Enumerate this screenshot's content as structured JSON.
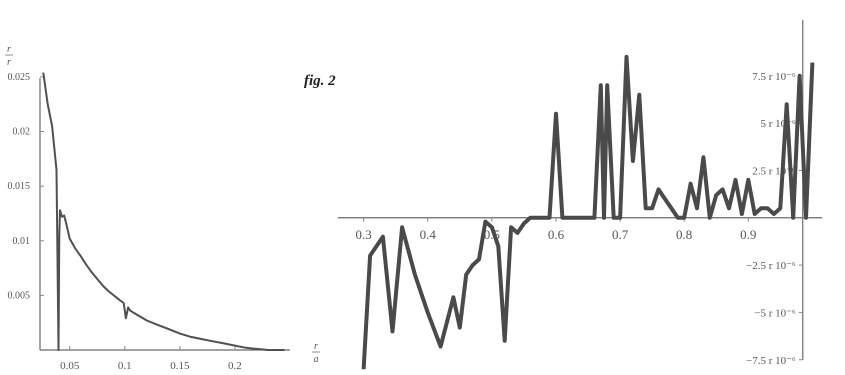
{
  "caption": "fig. 2",
  "chart_data": [
    {
      "type": "line",
      "title": "",
      "xlabel": "r/a",
      "ylabel": "r/r",
      "xlim": [
        0.023,
        0.25
      ],
      "ylim": [
        0,
        0.026
      ],
      "x_ticks": [
        {
          "v": 0.05,
          "label": "0.05"
        },
        {
          "v": 0.1,
          "label": "0.1"
        },
        {
          "v": 0.15,
          "label": "0.15"
        },
        {
          "v": 0.2,
          "label": "0.2"
        }
      ],
      "y_ticks": [
        {
          "v": 0.005,
          "label": "0.005"
        },
        {
          "v": 0.01,
          "label": "0.01"
        },
        {
          "v": 0.015,
          "label": "0.015"
        },
        {
          "v": 0.02,
          "label": "0.02"
        },
        {
          "v": 0.025,
          "label": "0.025"
        }
      ],
      "series": [
        {
          "x": [
            0.026,
            0.03,
            0.034,
            0.038,
            0.0398,
            0.0405,
            0.0412,
            0.043,
            0.045,
            0.047,
            0.05,
            0.055,
            0.06,
            0.065,
            0.07,
            0.075,
            0.08,
            0.085,
            0.09,
            0.095,
            0.099,
            0.101,
            0.103,
            0.105,
            0.11,
            0.12,
            0.13,
            0.14,
            0.15,
            0.16,
            0.17,
            0.18,
            0.19,
            0.2,
            0.21,
            0.22,
            0.23,
            0.24,
            0.245
          ],
          "y": [
            0.0254,
            0.0225,
            0.0205,
            0.0165,
            0.0,
            0.0105,
            0.0128,
            0.0122,
            0.0123,
            0.0115,
            0.0102,
            0.0093,
            0.0086,
            0.0078,
            0.0071,
            0.0065,
            0.0059,
            0.0054,
            0.005,
            0.0046,
            0.0043,
            0.0029,
            0.0039,
            0.0036,
            0.0033,
            0.0027,
            0.0023,
            0.0019,
            0.0015,
            0.0012,
            0.001,
            0.0008,
            0.0006,
            0.0004,
            0.0002,
            0.0001,
            0.0,
            0.0,
            0.0
          ]
        }
      ]
    },
    {
      "type": "line",
      "title": "",
      "xlabel": "",
      "ylabel": "",
      "xlim": [
        0.26,
        1.015
      ],
      "ylim": [
        -8.2e-06,
        8.6e-06
      ],
      "x_ticks": [
        {
          "v": 0.3,
          "label": "0.3"
        },
        {
          "v": 0.4,
          "label": "0.4"
        },
        {
          "v": 0.5,
          "label": "0.5"
        },
        {
          "v": 0.6,
          "label": "0.6"
        },
        {
          "v": 0.7,
          "label": "0.7"
        },
        {
          "v": 0.8,
          "label": "0.8"
        },
        {
          "v": 0.9,
          "label": "0.9"
        }
      ],
      "y_ticks": [
        {
          "v": 7.5e-06,
          "label": "7.5 r 10⁻⁶"
        },
        {
          "v": 5e-06,
          "label": "5 r 10⁻⁶"
        },
        {
          "v": 2.5e-06,
          "label": "2.5 r 10⁻⁶"
        },
        {
          "v": -2.5e-06,
          "label": "−2.5 r 10⁻⁶"
        },
        {
          "v": -5e-06,
          "label": "−5 r 10⁻⁶"
        },
        {
          "v": -7.5e-06,
          "label": "−7.5 r 10⁻⁶"
        }
      ],
      "series": [
        {
          "x": [
            0.3,
            0.31,
            0.33,
            0.345,
            0.36,
            0.38,
            0.4,
            0.42,
            0.44,
            0.45,
            0.46,
            0.47,
            0.48,
            0.49,
            0.5,
            0.51,
            0.52,
            0.53,
            0.54,
            0.55,
            0.56,
            0.57,
            0.58,
            0.59,
            0.6,
            0.61,
            0.62,
            0.63,
            0.64,
            0.65,
            0.66,
            0.67,
            0.675,
            0.68,
            0.69,
            0.7,
            0.71,
            0.72,
            0.73,
            0.74,
            0.75,
            0.76,
            0.77,
            0.78,
            0.79,
            0.8,
            0.81,
            0.82,
            0.83,
            0.84,
            0.85,
            0.86,
            0.87,
            0.88,
            0.89,
            0.9,
            0.91,
            0.92,
            0.93,
            0.94,
            0.95,
            0.96,
            0.97,
            0.98,
            0.99,
            1.0
          ],
          "y": [
            -8e-06,
            -2e-06,
            -1e-06,
            -6e-06,
            -5e-07,
            -3e-06,
            -5e-06,
            -6.8e-06,
            -4.2e-06,
            -5.8e-06,
            -3e-06,
            -2.5e-06,
            -2.2e-06,
            -2e-07,
            -5e-07,
            -1.5e-06,
            -6.5e-06,
            -5e-07,
            -8e-07,
            -3e-07,
            0.0,
            0.0,
            0.0,
            0.0,
            5.5e-06,
            0.0,
            0.0,
            0.0,
            0.0,
            0.0,
            0.0,
            7e-06,
            0.0,
            7e-06,
            0.0,
            0.0,
            8.5e-06,
            3e-06,
            6.5e-06,
            5e-07,
            5e-07,
            1.5e-06,
            1e-06,
            5e-07,
            0.0,
            0.0,
            1.8e-06,
            5e-07,
            3.2e-06,
            0.0,
            1.2e-06,
            1.5e-06,
            5e-07,
            2e-06,
            2e-07,
            2e-06,
            2e-07,
            5e-07,
            5e-07,
            2e-07,
            5e-07,
            6e-06,
            0.0,
            7.5e-06,
            0.0,
            8.2e-06
          ]
        }
      ]
    }
  ]
}
